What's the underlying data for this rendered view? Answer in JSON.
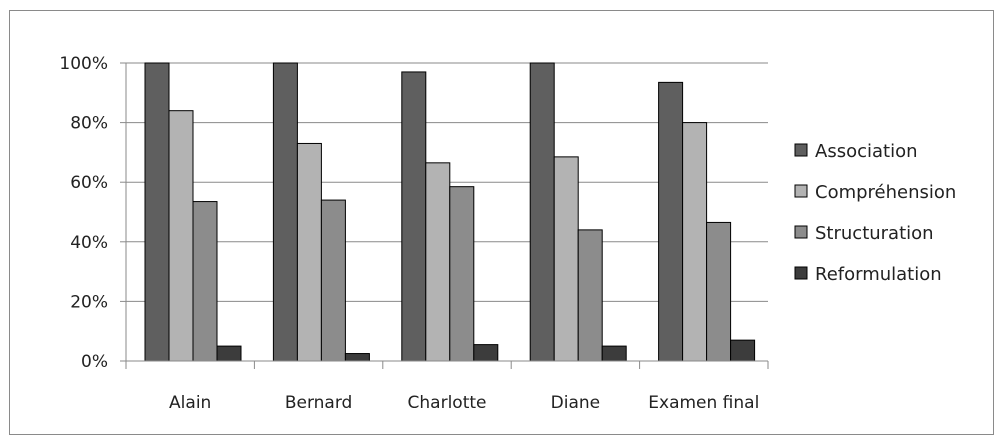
{
  "chart_data": {
    "type": "bar",
    "categories": [
      "Alain",
      "Bernard",
      "Charlotte",
      "Diane",
      "Examen final"
    ],
    "series": [
      {
        "name": "Association",
        "values": [
          100,
          100,
          97,
          100,
          93.5
        ],
        "color": "#5f5f5f"
      },
      {
        "name": "Compréhension",
        "values": [
          84,
          73,
          66.5,
          68.5,
          80
        ],
        "color": "#b3b3b3"
      },
      {
        "name": "Structuration",
        "values": [
          53.5,
          54,
          58.5,
          44,
          46.5
        ],
        "color": "#8c8c8c"
      },
      {
        "name": "Reformulation",
        "values": [
          5,
          2.5,
          5.5,
          5,
          7
        ],
        "color": "#3c3c3c"
      }
    ],
    "yticks": [
      "0%",
      "20%",
      "40%",
      "60%",
      "80%",
      "100%"
    ],
    "ylim": [
      0,
      100
    ],
    "grid": true,
    "legend_position": "right"
  }
}
